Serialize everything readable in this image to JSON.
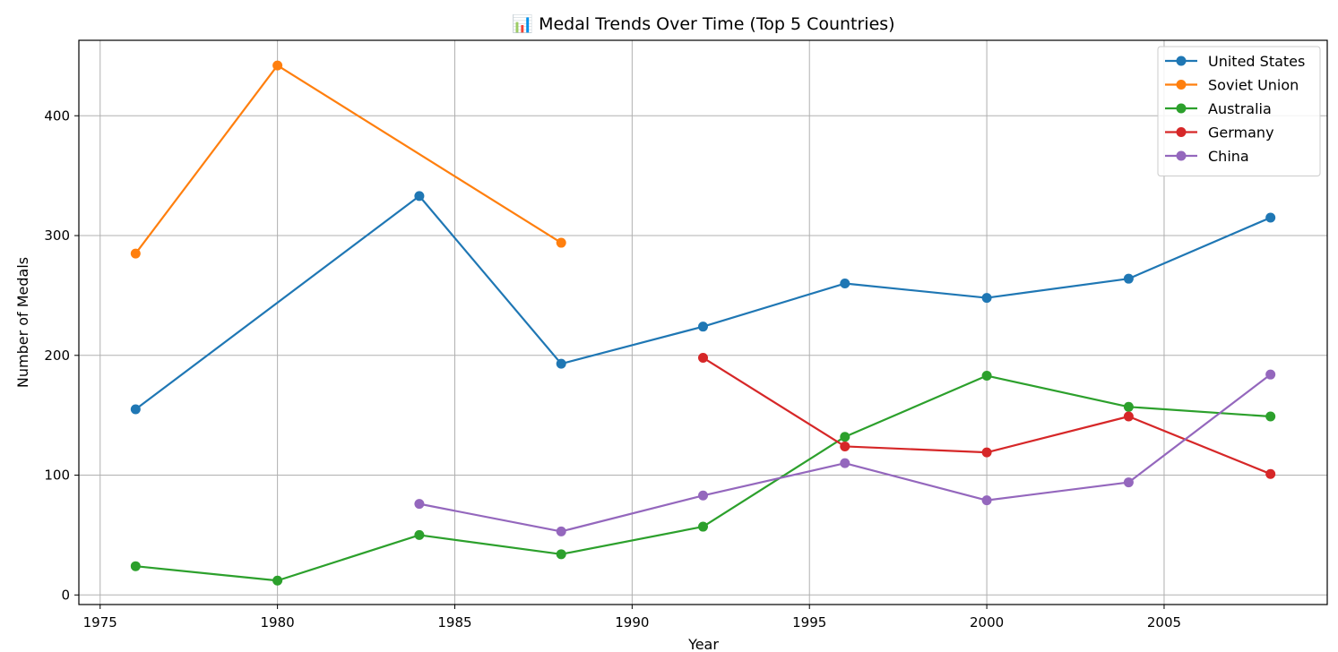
{
  "chart_data": {
    "type": "line",
    "title": "📊 Medal Trends Over Time (Top 5 Countries)",
    "xlabel": "Year",
    "ylabel": "Number of Medals",
    "xlim": [
      1974.4,
      2009.6
    ],
    "ylim": [
      -8,
      463
    ],
    "xticks": [
      1975,
      1980,
      1985,
      1990,
      1995,
      2000,
      2005
    ],
    "yticks": [
      0,
      100,
      200,
      300,
      400
    ],
    "grid": true,
    "legend_position": "top-right",
    "series": [
      {
        "name": "United States",
        "color": "#1f77b4",
        "points": [
          [
            1976,
            155
          ],
          [
            1984,
            333
          ],
          [
            1988,
            193
          ],
          [
            1992,
            224
          ],
          [
            1996,
            260
          ],
          [
            2000,
            248
          ],
          [
            2004,
            264
          ],
          [
            2008,
            315
          ]
        ]
      },
      {
        "name": "Soviet Union",
        "color": "#ff7f0e",
        "points": [
          [
            1976,
            285
          ],
          [
            1980,
            442
          ],
          [
            1988,
            294
          ]
        ]
      },
      {
        "name": "Australia",
        "color": "#2ca02c",
        "points": [
          [
            1976,
            24
          ],
          [
            1980,
            12
          ],
          [
            1984,
            50
          ],
          [
            1988,
            34
          ],
          [
            1992,
            57
          ],
          [
            1996,
            132
          ],
          [
            2000,
            183
          ],
          [
            2004,
            157
          ],
          [
            2008,
            149
          ]
        ]
      },
      {
        "name": "Germany",
        "color": "#d62728",
        "points": [
          [
            1992,
            198
          ],
          [
            1996,
            124
          ],
          [
            2000,
            119
          ],
          [
            2004,
            149
          ],
          [
            2008,
            101
          ]
        ]
      },
      {
        "name": "China",
        "color": "#9467bd",
        "points": [
          [
            1984,
            76
          ],
          [
            1988,
            53
          ],
          [
            1992,
            83
          ],
          [
            1996,
            110
          ],
          [
            2000,
            79
          ],
          [
            2004,
            94
          ],
          [
            2008,
            184
          ]
        ]
      }
    ]
  }
}
